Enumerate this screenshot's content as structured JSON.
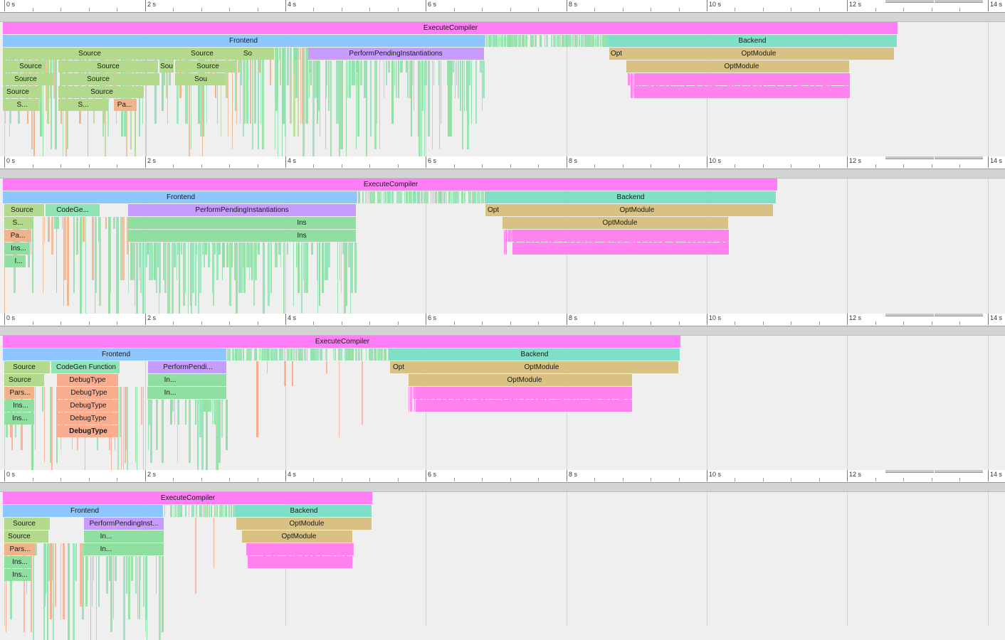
{
  "colors": {
    "execute": "#ff7df5",
    "frontend": "#8ec6ff",
    "backend": "#7fe0c8",
    "source": "#b3d98c",
    "perform": "#c79cff",
    "opt": "#d8c183",
    "parse": "#f0b48a",
    "instantiate": "#8fdfa0",
    "codegen": "#8fe3b5",
    "debugtype": "#f9ac8e",
    "optpass": "#ff82ee"
  },
  "ruler": {
    "labels": [
      "0 s",
      "2 s",
      "4 s",
      "6 s",
      "8 s",
      "10 s",
      "12 s",
      "14 s"
    ]
  },
  "panels": [
    {
      "id": "trace-1",
      "labels": [
        {
          "text": "ExecuteCompiler",
          "cx": 633,
          "row": 0
        },
        {
          "text": "Frontend",
          "cx": 342,
          "row": 1
        },
        {
          "text": "Backend",
          "cx": 1057,
          "row": 1
        },
        {
          "text": "Source",
          "cx": 126,
          "row": 2
        },
        {
          "text": "Source",
          "cx": 284,
          "row": 2
        },
        {
          "text": "So",
          "cx": 348,
          "row": 2
        },
        {
          "text": "PerformPendingInstantiations",
          "cx": 556,
          "row": 2
        },
        {
          "text": "Opt",
          "cx": 866,
          "row": 2
        },
        {
          "text": "OptModule",
          "cx": 1066,
          "row": 2
        },
        {
          "text": "Source",
          "cx": 43,
          "row": 3
        },
        {
          "text": "Source",
          "cx": 152,
          "row": 3
        },
        {
          "text": "Sou",
          "cx": 234,
          "row": 3
        },
        {
          "text": "Source",
          "cx": 292,
          "row": 3
        },
        {
          "text": "OptModule",
          "cx": 1042,
          "row": 3
        },
        {
          "text": "Source",
          "cx": 36,
          "row": 4
        },
        {
          "text": "Source",
          "cx": 138,
          "row": 4
        },
        {
          "text": "Sou",
          "cx": 282,
          "row": 4
        },
        {
          "text": "Source",
          "cx": 25,
          "row": 5
        },
        {
          "text": "Source",
          "cx": 143,
          "row": 5
        },
        {
          "text": "S...",
          "cx": 31,
          "row": 6
        },
        {
          "text": "S...",
          "cx": 117,
          "row": 6
        },
        {
          "text": "Pa...",
          "cx": 175,
          "row": 6
        }
      ]
    },
    {
      "id": "trace-2",
      "labels": [
        {
          "text": "ExecuteCompiler",
          "cx": 549,
          "row": 0
        },
        {
          "text": "Frontend",
          "cx": 254,
          "row": 1
        },
        {
          "text": "Backend",
          "cx": 886,
          "row": 1
        },
        {
          "text": "Source",
          "cx": 31,
          "row": 2
        },
        {
          "text": "CodeGe...",
          "cx": 102,
          "row": 2
        },
        {
          "text": "PerformPendingInstantiations",
          "cx": 340,
          "row": 2
        },
        {
          "text": "Opt",
          "cx": 693,
          "row": 2
        },
        {
          "text": "OptModule",
          "cx": 895,
          "row": 2
        },
        {
          "text": "S...",
          "cx": 25,
          "row": 3
        },
        {
          "text": "Ins",
          "cx": 424,
          "row": 3
        },
        {
          "text": "OptModule",
          "cx": 871,
          "row": 3
        },
        {
          "text": "Pa...",
          "cx": 25,
          "row": 4
        },
        {
          "text": "Ins",
          "cx": 424,
          "row": 4
        },
        {
          "text": "Ins...",
          "cx": 26,
          "row": 5
        },
        {
          "text": "I...",
          "cx": 26,
          "row": 6
        }
      ]
    },
    {
      "id": "trace-3",
      "labels": [
        {
          "text": "ExecuteCompiler",
          "cx": 481,
          "row": 0
        },
        {
          "text": "Frontend",
          "cx": 163,
          "row": 1
        },
        {
          "text": "Backend",
          "cx": 751,
          "row": 1
        },
        {
          "text": "Source",
          "cx": 34,
          "row": 2
        },
        {
          "text": "CodeGen Function",
          "cx": 121,
          "row": 2
        },
        {
          "text": "PerformPendi...",
          "cx": 264,
          "row": 2
        },
        {
          "text": "Opt",
          "cx": 560,
          "row": 2
        },
        {
          "text": "OptModule",
          "cx": 761,
          "row": 2
        },
        {
          "text": "Source",
          "cx": 28,
          "row": 3
        },
        {
          "text": "DebugType",
          "cx": 123,
          "row": 3
        },
        {
          "text": "In...",
          "cx": 239,
          "row": 3
        },
        {
          "text": "OptModule",
          "cx": 737,
          "row": 3
        },
        {
          "text": "Pars...",
          "cx": 28,
          "row": 4
        },
        {
          "text": "DebugType",
          "cx": 125,
          "row": 4
        },
        {
          "text": "In...",
          "cx": 239,
          "row": 4
        },
        {
          "text": "Ins...",
          "cx": 29,
          "row": 5
        },
        {
          "text": "DebugType",
          "cx": 124,
          "row": 5
        },
        {
          "text": "Ins...",
          "cx": 28,
          "row": 6
        },
        {
          "text": "DebugType",
          "cx": 124,
          "row": 6
        },
        {
          "text": "DebugType",
          "cx": 124,
          "row": 7,
          "bold": true
        }
      ]
    },
    {
      "id": "trace-4",
      "labels": [
        {
          "text": "ExecuteCompiler",
          "cx": 264,
          "row": 0
        },
        {
          "text": "Frontend",
          "cx": 119,
          "row": 1
        },
        {
          "text": "Backend",
          "cx": 427,
          "row": 1
        },
        {
          "text": "Source",
          "cx": 34,
          "row": 2
        },
        {
          "text": "PerformPendingInst...",
          "cx": 174,
          "row": 2
        },
        {
          "text": "OptModule",
          "cx": 431,
          "row": 2
        },
        {
          "text": "Source",
          "cx": 27,
          "row": 3
        },
        {
          "text": "In...",
          "cx": 149,
          "row": 3
        },
        {
          "text": "OptModule",
          "cx": 420,
          "row": 3
        },
        {
          "text": "Pars...",
          "cx": 28,
          "row": 4
        },
        {
          "text": "In...",
          "cx": 149,
          "row": 4
        },
        {
          "text": "Ins...",
          "cx": 28,
          "row": 5
        },
        {
          "text": "Ins...",
          "cx": 28,
          "row": 6
        }
      ]
    }
  ]
}
